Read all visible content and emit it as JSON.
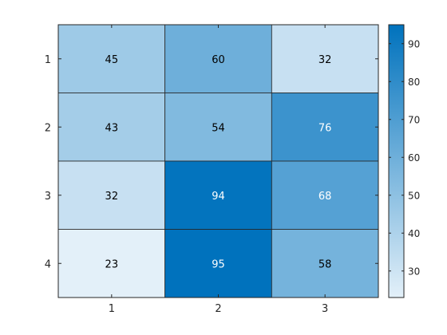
{
  "chart_data": {
    "type": "heatmap",
    "title": "",
    "xlabel": "",
    "ylabel": "",
    "x_tick_labels": [
      "1",
      "2",
      "3"
    ],
    "y_tick_labels": [
      "1",
      "2",
      "3",
      "4"
    ],
    "values": [
      [
        45,
        60,
        32
      ],
      [
        43,
        54,
        76
      ],
      [
        32,
        94,
        68
      ],
      [
        23,
        95,
        58
      ]
    ],
    "cell_labels": [
      [
        "45",
        "60",
        "32"
      ],
      [
        "43",
        "54",
        "76"
      ],
      [
        "32",
        "94",
        "68"
      ],
      [
        "23",
        "95",
        "58"
      ]
    ],
    "colorbar": {
      "range": [
        23,
        95
      ],
      "ticks": [
        30,
        40,
        50,
        60,
        70,
        80,
        90
      ],
      "tick_labels": [
        "30",
        "40",
        "50",
        "60",
        "70",
        "80",
        "90"
      ],
      "colors": {
        "low": "#e3f0f9",
        "high": "#0072bd"
      }
    },
    "grid": false,
    "legend": "colorbar-right"
  }
}
